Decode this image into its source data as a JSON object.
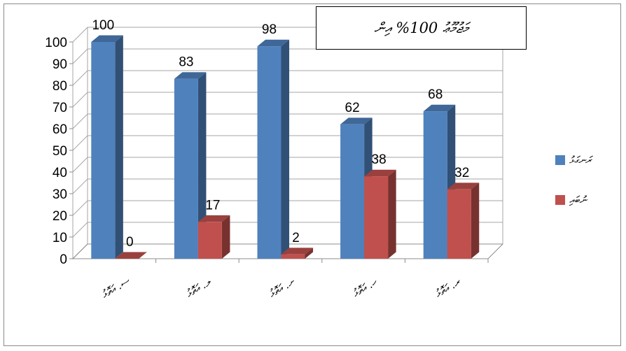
{
  "chart_data": {
    "type": "bar",
    "style": "3d-clustered-column",
    "categories": [
      "ސ. އަތޮޅު",
      "ލ. އަތޮޅު",
      "ށ. އަތޮޅު",
      "ހ. އަތޮޅު",
      "ރ. އަތޮޅު"
    ],
    "series": [
      {
        "name": "ރަނގަޅު",
        "color": "#4f81bd",
        "values": [
          100,
          83,
          98,
          62,
          68
        ]
      },
      {
        "name": "ނުބައި",
        "color": "#c0504d",
        "values": [
          0,
          17,
          2,
          38,
          32
        ]
      }
    ],
    "data_labels": true,
    "yticks": [
      "0",
      "10",
      "20",
      "30",
      "40",
      "50",
      "60",
      "70",
      "80",
      "90",
      "100"
    ],
    "ylim": [
      0,
      100
    ],
    "grid": true,
    "legend_position": "right",
    "annotation": "މަޖުމޫޢު 100% އިން"
  }
}
